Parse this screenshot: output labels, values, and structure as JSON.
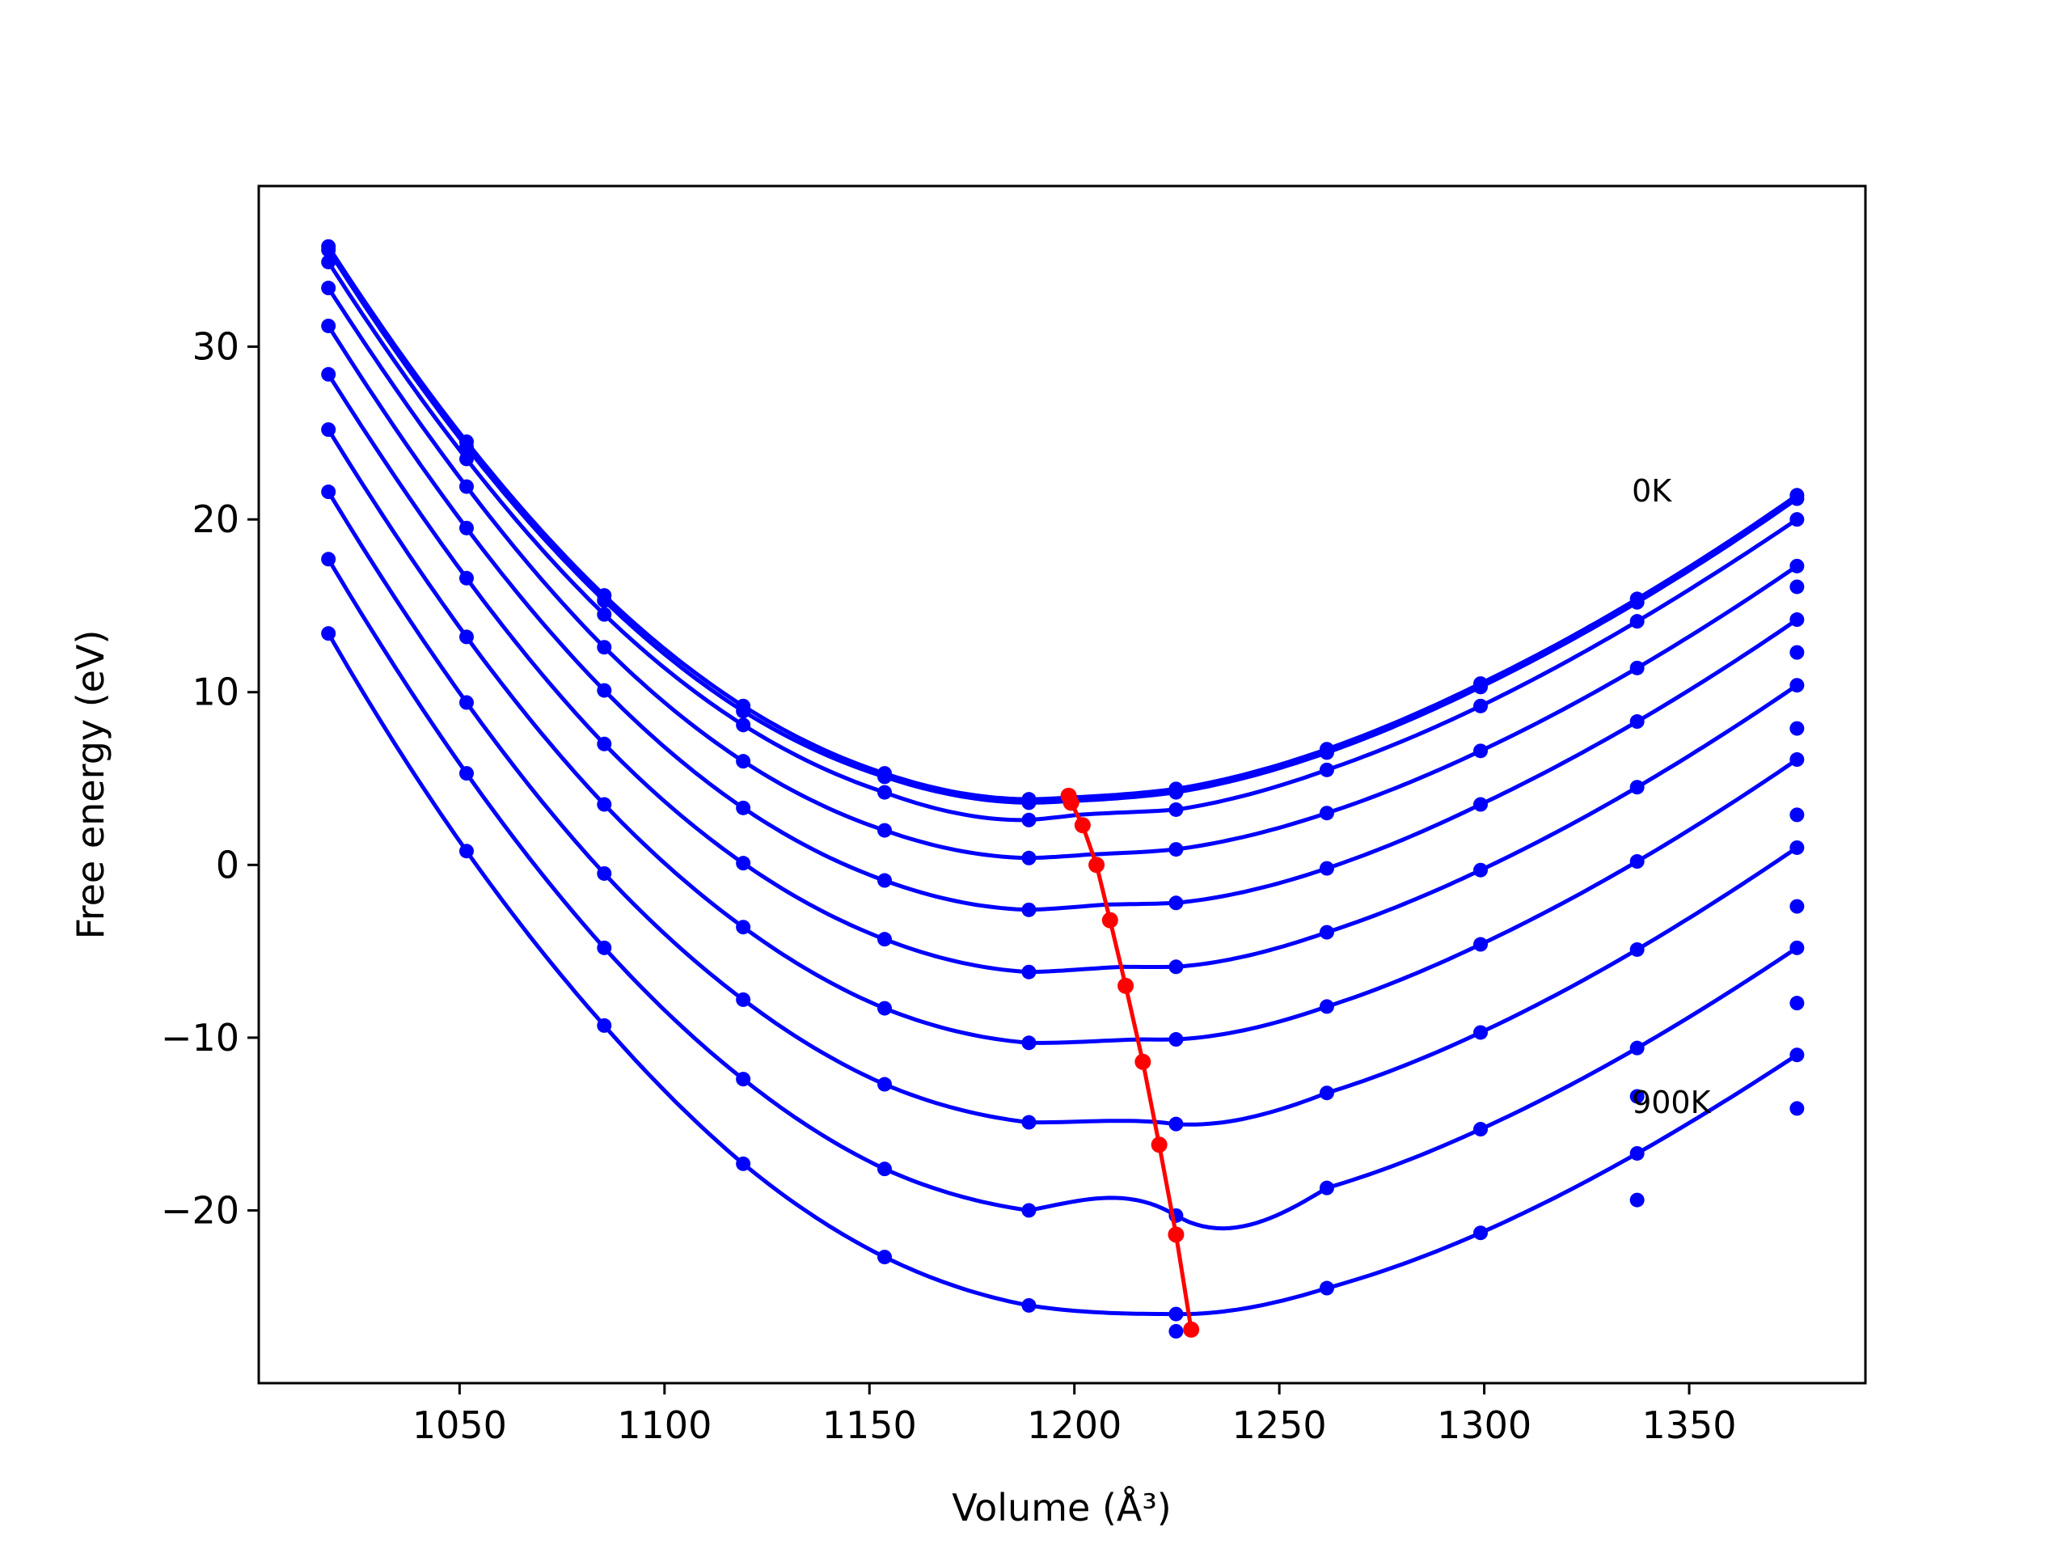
{
  "chart_data": {
    "type": "line",
    "xlabel": "Volume (Å³)",
    "ylabel": "Free energy (eV)",
    "xlim": [
      1001,
      1393
    ],
    "ylim": [
      -30,
      39.3
    ],
    "xticks": [
      1050,
      1100,
      1150,
      1200,
      1250,
      1300,
      1350
    ],
    "yticks": [
      -20,
      -10,
      0,
      10,
      20,
      30
    ],
    "ytick_labels": [
      "−20",
      "−10",
      "0",
      "10",
      "20",
      "30"
    ],
    "grid": false,
    "legend": "none",
    "annotations": [
      {
        "text": "0K",
        "x": 1336,
        "y": 21.7
      },
      {
        "text": "900K",
        "x": 1336,
        "y": -13.7
      }
    ],
    "colors": {
      "curves": "#0000ff",
      "minima": "#ff0000",
      "axes": "#000000"
    },
    "volumes": [
      1018,
      1051.7,
      1085.3,
      1119.2,
      1153.7,
      1188.9,
      1224.8,
      1261.6,
      1299.1,
      1337.3,
      1376.3
    ],
    "series": [
      {
        "values": [
          35.8,
          24.5,
          15.6,
          9.2,
          5.3,
          3.8,
          4.4,
          6.7,
          10.5,
          15.4,
          21.4
        ],
        "min_x": 1198.6,
        "min_y": 3.9
      },
      {
        "values": [
          35.6,
          24.2,
          15.3,
          8.9,
          5.1,
          3.6,
          4.2,
          6.5,
          10.3,
          15.2,
          21.2
        ],
        "min_x": 1199.2,
        "min_y": 3.7
      },
      {
        "values": [
          34.9,
          23.5,
          14.5,
          8.1,
          4.2,
          2.6,
          3.2,
          5.5,
          9.2,
          14.1,
          20.0
        ],
        "min_x": 1200.8,
        "min_y": 2.9
      },
      {
        "values": [
          33.4,
          21.9,
          12.6,
          6.0,
          2.0,
          0.4,
          0.9,
          3.0,
          6.6,
          11.4,
          17.3
        ],
        "min_x": 1203.4,
        "min_y": 0.6
      },
      {
        "values": [
          31.2,
          19.5,
          10.1,
          3.3,
          -0.9,
          -2.6,
          -2.2,
          -0.2,
          3.5,
          8.3,
          14.2
        ],
        "min_x": 1207.4,
        "min_y": -2.3
      },
      {
        "values": [
          28.4,
          16.6,
          7.0,
          0.1,
          -4.3,
          -6.2,
          -5.9,
          -3.9,
          -0.3,
          4.5,
          10.4
        ],
        "min_x": 1211.5,
        "min_y": -5.9
      },
      {
        "values": [
          25.2,
          13.2,
          3.5,
          -3.6,
          -8.3,
          -10.3,
          -10.1,
          -8.2,
          -4.6,
          0.2,
          6.1
        ],
        "min_x": 1216.2,
        "min_y": -10.1
      },
      {
        "values": [
          21.6,
          9.4,
          -0.5,
          -7.8,
          -12.7,
          -14.9,
          -15.0,
          -13.2,
          -9.7,
          -4.9,
          1.0
        ],
        "min_x": 1220.9,
        "min_y": -14.9
      },
      {
        "values": [
          17.7,
          5.3,
          -4.8,
          -12.4,
          -17.6,
          -20.0,
          -20.3,
          -18.7,
          -15.3,
          -10.6,
          -4.8
        ],
        "min_x": 1224.1,
        "min_y": -20.2
      },
      {
        "values": [
          13.4,
          0.8,
          -9.3,
          -17.3,
          -22.7,
          -25.5,
          -26.0,
          -24.5,
          -21.3,
          -16.7,
          -11.0
        ],
        "min_x": 1227.1,
        "min_y": -26.0
      }
    ],
    "extra_points": [
      {
        "x": 1224.8,
        "y": -27.0
      },
      {
        "x": 1337.3,
        "y": -19.4
      },
      {
        "x": 1376.3,
        "y": -14.1
      },
      {
        "x": 1376.3,
        "y": -8.0
      },
      {
        "x": 1376.3,
        "y": -2.4
      },
      {
        "x": 1376.3,
        "y": 2.9
      },
      {
        "x": 1376.3,
        "y": 7.9
      },
      {
        "x": 1376.3,
        "y": 12.3
      },
      {
        "x": 1376.3,
        "y": 16.1
      },
      {
        "x": 1337.3,
        "y": -13.4
      }
    ],
    "minima_line": {
      "x": [
        1198.6,
        1199.2,
        1202.0,
        1205.4,
        1208.7,
        1212.5,
        1216.7,
        1220.7,
        1224.8,
        1228.5
      ],
      "y": [
        4.0,
        3.6,
        2.3,
        0.0,
        -3.2,
        -7.0,
        -11.4,
        -16.2,
        -21.4,
        -26.9
      ]
    }
  }
}
